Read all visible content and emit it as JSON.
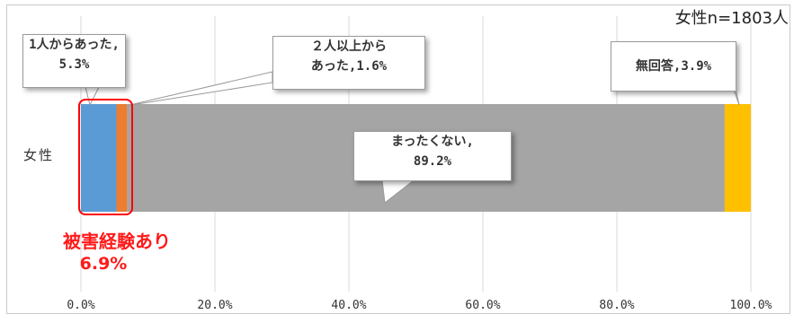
{
  "note": "女性n=1803人",
  "chart_data": {
    "type": "bar",
    "orientation": "horizontal-stacked-100",
    "categories": [
      "女性"
    ],
    "series": [
      {
        "name": "1人からあった",
        "values": [
          5.3
        ],
        "color": "#5b9bd5"
      },
      {
        "name": "２人以上からあった",
        "values": [
          1.6
        ],
        "color": "#ed7d31"
      },
      {
        "name": "まったくない",
        "values": [
          89.2
        ],
        "color": "#a5a5a5"
      },
      {
        "name": "無回答",
        "values": [
          3.9
        ],
        "color": "#ffc000"
      }
    ],
    "xlim": [
      0,
      100
    ],
    "xticks": [
      "0.0%",
      "20.0%",
      "40.0%",
      "60.0%",
      "80.0%",
      "100.0%"
    ],
    "grid": true
  },
  "callouts": {
    "one": {
      "line1": "1人からあった,",
      "line2": "5.3%"
    },
    "two": {
      "line1": "２人以上から",
      "line2": "あった,1.6%"
    },
    "none": {
      "line1": "まったくない,",
      "line2": "89.2%"
    },
    "na": {
      "line1": "無回答,3.9%"
    }
  },
  "highlight": {
    "label": "被害経験あり",
    "value": "6.9%",
    "color": "#ff0000"
  }
}
